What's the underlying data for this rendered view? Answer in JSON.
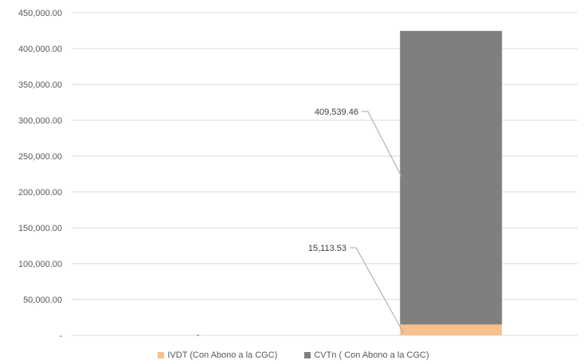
{
  "chart_data": {
    "type": "bar",
    "stacked": true,
    "categories": [
      "",
      ""
    ],
    "ylim": [
      0,
      450000
    ],
    "yticks": [
      0,
      50000,
      100000,
      150000,
      200000,
      250000,
      300000,
      350000,
      400000,
      450000
    ],
    "ytick_labels": [
      "-",
      "50,000.00",
      "100,000.00",
      "150,000.00",
      "200,000.00",
      "250,000.00",
      "300,000.00",
      "350,000.00",
      "400,000.00",
      "450,000.00"
    ],
    "grid": true,
    "legend_position": "bottom",
    "series": [
      {
        "name": "IVDT  (Con Abono a la CGC)",
        "color": "#f8bf8f",
        "values": [
          0,
          15113.53
        ],
        "labels": [
          "-",
          "15,113.53"
        ]
      },
      {
        "name": "CVTn ( Con Abono a la CGC)",
        "color": "#7f7f7f",
        "values": [
          0,
          409539.46
        ],
        "labels": [
          "",
          "409,539.46"
        ]
      }
    ]
  }
}
